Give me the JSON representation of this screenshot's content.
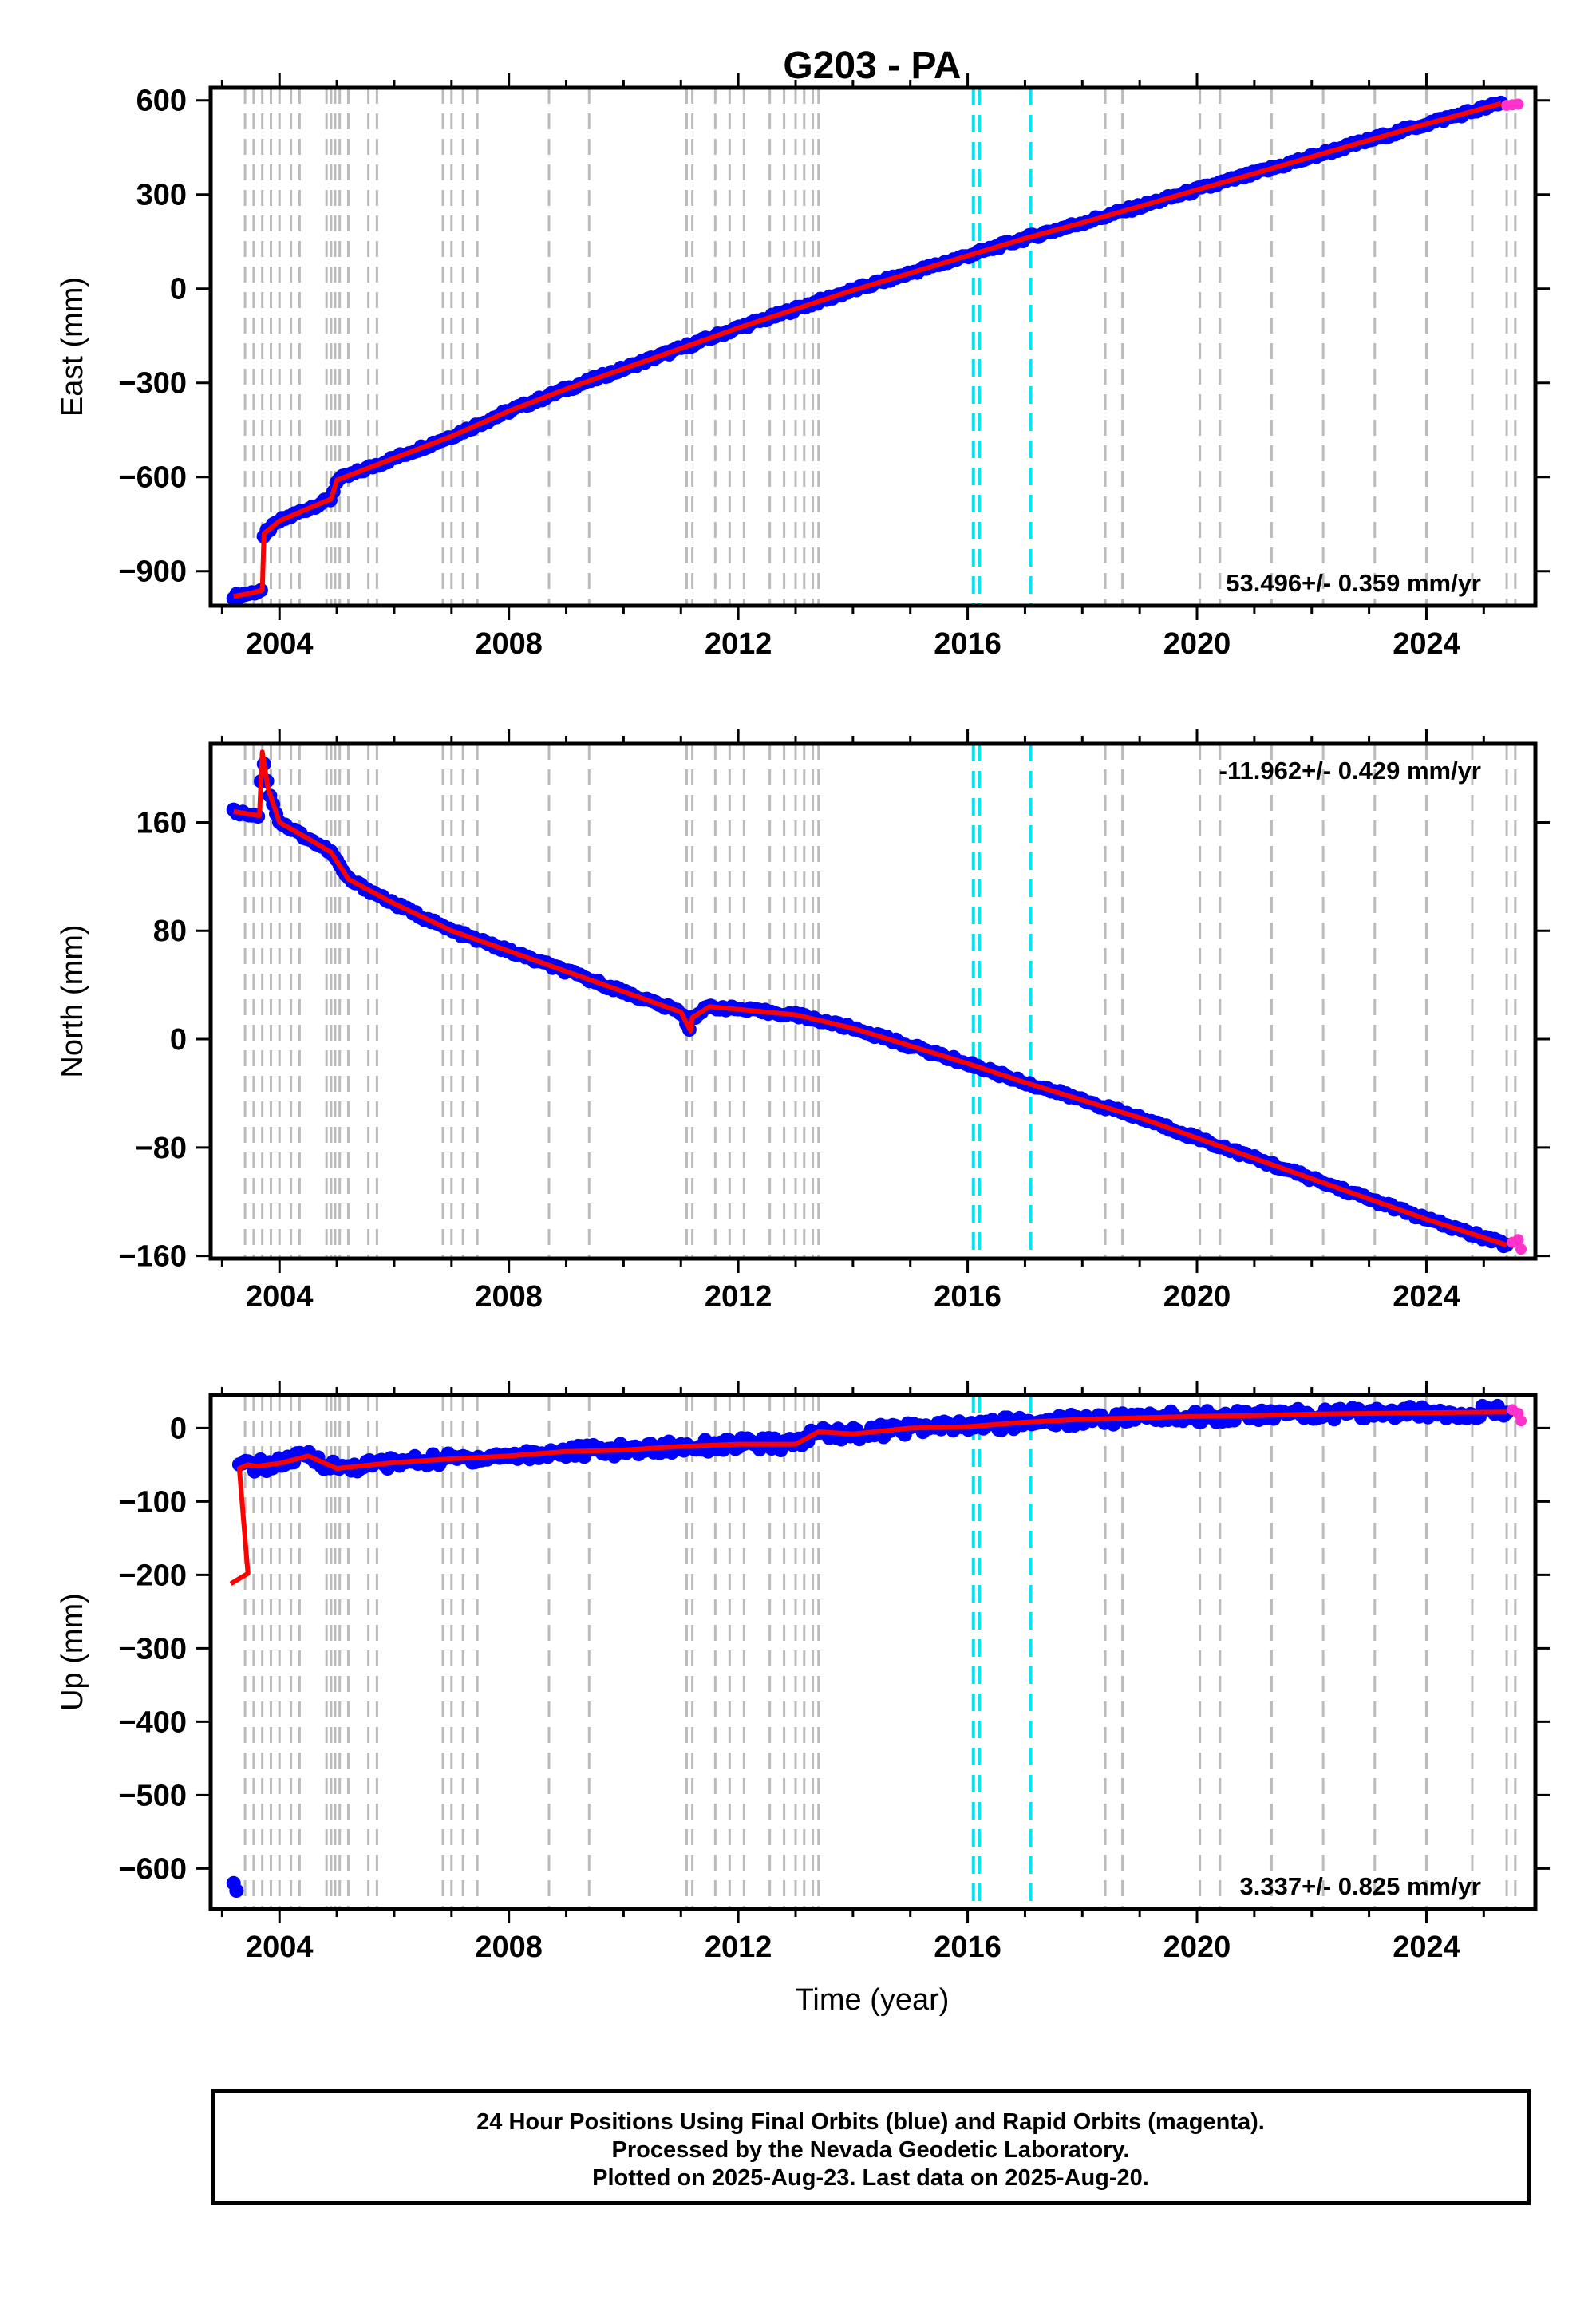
{
  "title": "G203 - PA",
  "xlabel": "Time (year)",
  "footer": {
    "line1": "24 Hour Positions Using Final Orbits (blue) and Rapid Orbits (magenta).",
    "line2": "Processed by the Nevada Geodetic Laboratory.",
    "line3": "Plotted on 2025-Aug-23. Last data on 2025-Aug-20."
  },
  "colors": {
    "final_orbits": "#0000ff",
    "rapid_orbits": "#ff33cc",
    "model_fit": "#ff0000",
    "equipment_change": "#bbbbbb",
    "earthquake": "#00e5f0"
  },
  "chart_data": [
    {
      "type": "scatter",
      "ylabel": "East (mm)",
      "rate": "53.496+/- 0.359 mm/yr",
      "xlim": [
        2002.8,
        2025.9
      ],
      "ylim": [
        -1010,
        640
      ],
      "xticks": [
        2004,
        2008,
        2012,
        2016,
        2020,
        2024
      ],
      "yticks": [
        -900,
        -600,
        -300,
        0,
        300,
        600
      ],
      "series": [
        {
          "name": "Final Orbits",
          "x": [
            2003.2,
            2003.5,
            2003.7,
            2003.73,
            2004.0,
            2004.5,
            2004.9,
            2005.0,
            2006.0,
            2007.0,
            2008.0,
            2009.0,
            2010.0,
            2011.0,
            2012.0,
            2013.0,
            2014.0,
            2015.0,
            2016.0,
            2017.0,
            2018.0,
            2019.0,
            2020.0,
            2021.0,
            2022.0,
            2023.0,
            2024.0,
            2025.3
          ],
          "y": [
            -980,
            -970,
            -960,
            -780,
            -740,
            -700,
            -670,
            -610,
            -540,
            -470,
            -390,
            -320,
            -255,
            -190,
            -125,
            -65,
            -5,
            50,
            105,
            160,
            210,
            262,
            315,
            367,
            420,
            473,
            525,
            590
          ]
        },
        {
          "name": "Rapid Orbits",
          "x": [
            2025.4,
            2025.5,
            2025.6
          ],
          "y": [
            584,
            586,
            588
          ]
        }
      ]
    },
    {
      "type": "scatter",
      "ylabel": "North (mm)",
      "rate": "-11.962+/- 0.429 mm/yr",
      "xlim": [
        2002.8,
        2025.9
      ],
      "ylim": [
        -162,
        218
      ],
      "xticks": [
        2004,
        2008,
        2012,
        2016,
        2020,
        2024
      ],
      "yticks": [
        -160,
        -80,
        0,
        80,
        160
      ],
      "series": [
        {
          "name": "Final Orbits",
          "x": [
            2003.2,
            2003.5,
            2003.65,
            2003.7,
            2003.8,
            2004.0,
            2004.5,
            2004.9,
            2005.2,
            2006.0,
            2007.0,
            2008.0,
            2009.0,
            2010.0,
            2011.0,
            2011.17,
            2011.2,
            2011.5,
            2012.0,
            2013.0,
            2014.0,
            2015.0,
            2016.0,
            2017.0,
            2018.0,
            2019.0,
            2020.0,
            2021.0,
            2022.0,
            2023.0,
            2024.0,
            2025.4
          ],
          "y": [
            168,
            166,
            165,
            212,
            185,
            160,
            148,
            138,
            118,
            100,
            80,
            65,
            50,
            35,
            20,
            6,
            16,
            24,
            22,
            18,
            8,
            -5,
            -18,
            -32,
            -45,
            -58,
            -73,
            -88,
            -103,
            -118,
            -133,
            -152
          ]
        },
        {
          "name": "Rapid Orbits",
          "x": [
            2025.5,
            2025.6,
            2025.65
          ],
          "y": [
            -150,
            -148,
            -155
          ]
        }
      ]
    },
    {
      "type": "scatter",
      "ylabel": "Up (mm)",
      "rate": "3.337+/- 0.825 mm/yr",
      "xlim": [
        2002.8,
        2025.9
      ],
      "ylim": [
        -655,
        45
      ],
      "xticks": [
        2004,
        2008,
        2012,
        2016,
        2020,
        2024
      ],
      "yticks": [
        -600,
        -500,
        -400,
        -300,
        -200,
        -100,
        0
      ],
      "series": [
        {
          "name": "Final Orbits",
          "x": [
            2003.3,
            2003.45,
            2003.6,
            2004.0,
            2004.5,
            2005.0,
            2006.0,
            2007.0,
            2008.0,
            2009.0,
            2010.0,
            2011.0,
            2012.0,
            2013.0,
            2013.4,
            2014.0,
            2015.0,
            2016.0,
            2017.0,
            2018.0,
            2019.0,
            2020.0,
            2021.0,
            2022.0,
            2023.0,
            2024.0,
            2025.4
          ],
          "y": [
            -55,
            -50,
            -52,
            -48,
            -38,
            -55,
            -47,
            -42,
            -38,
            -32,
            -30,
            -25,
            -22,
            -22,
            -5,
            -8,
            0,
            2,
            8,
            12,
            14,
            16,
            17,
            19,
            20,
            21,
            22
          ]
        },
        {
          "name": "Outliers",
          "x": [
            2003.2,
            2003.25
          ],
          "y": [
            -620,
            -630
          ]
        },
        {
          "name": "Rapid Orbits",
          "x": [
            2025.5,
            2025.6,
            2025.65
          ],
          "y": [
            25,
            20,
            10
          ]
        }
      ]
    }
  ]
}
